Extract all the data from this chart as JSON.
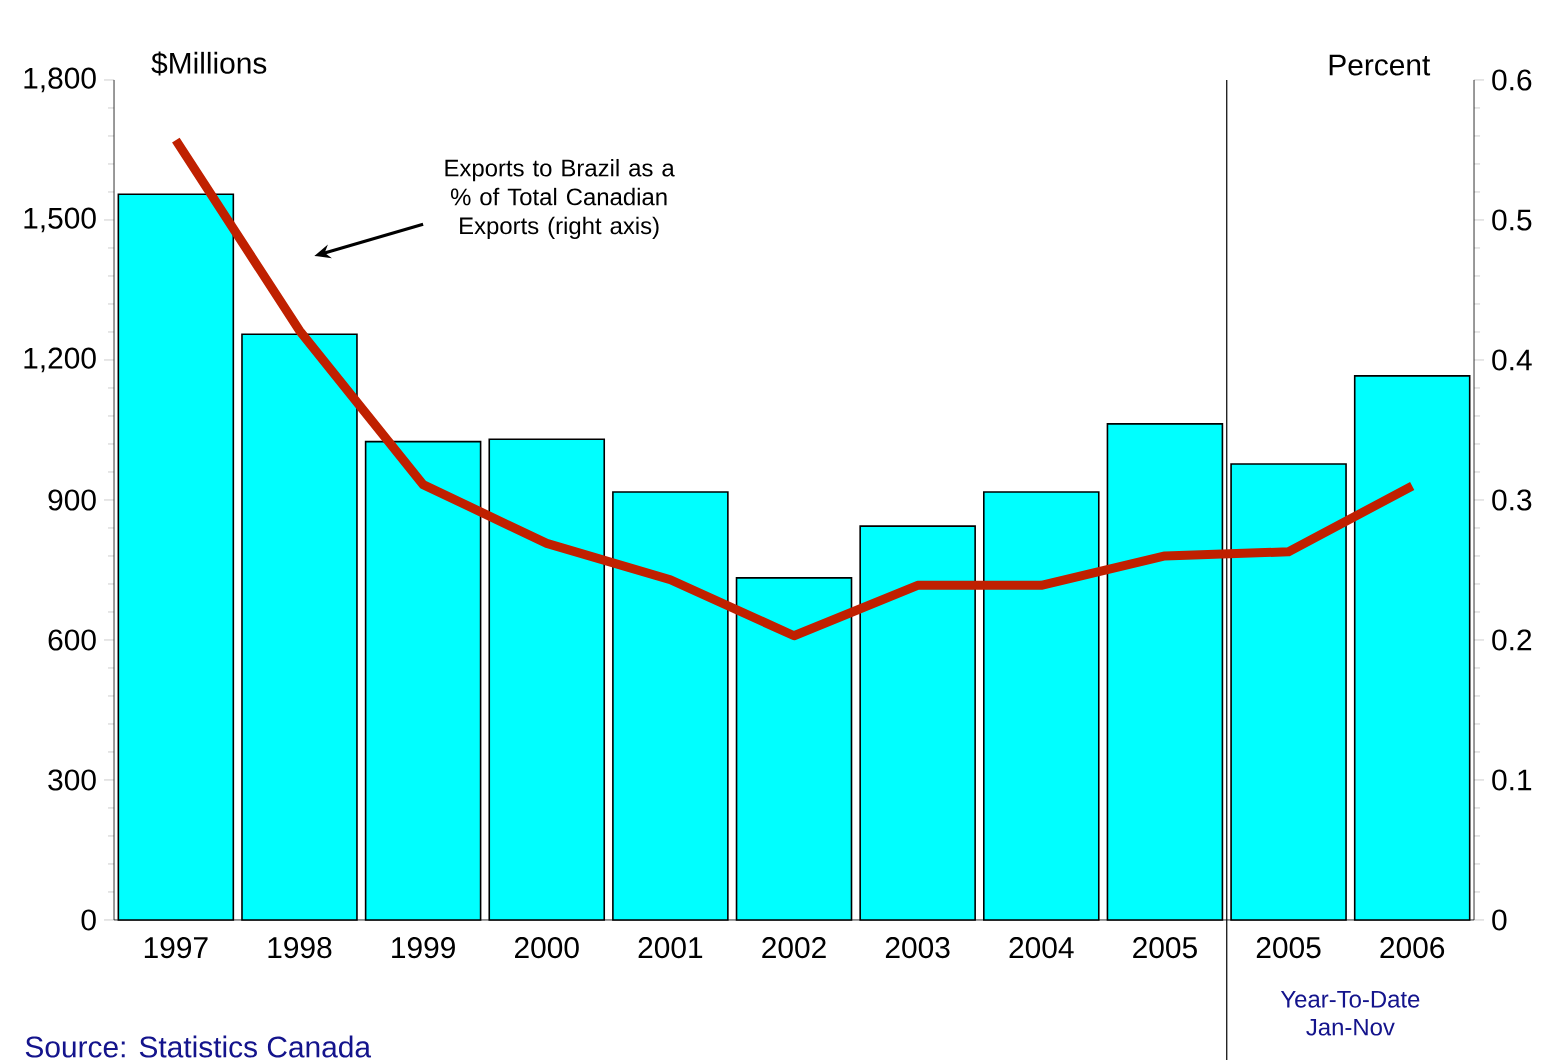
{
  "chart_data": {
    "type": "bar",
    "categories": [
      "1997",
      "1998",
      "1999",
      "2000",
      "2001",
      "2002",
      "2003",
      "2004",
      "2005",
      "2005",
      "2006"
    ],
    "ylabel": "$Millions",
    "y2label": "Percent",
    "series": [
      {
        "color": "#00ffff",
        "values": [
          1555,
          1255,
          1025,
          1030,
          917,
          733,
          844,
          917,
          1063,
          977,
          1166
        ]
      },
      {
        "type": "line",
        "axis": "y2",
        "color": "#c02000",
        "values": [
          0.557,
          0.421,
          0.311,
          0.269,
          0.243,
          0.203,
          0.239,
          0.239,
          0.26,
          0.263,
          0.31
        ]
      }
    ],
    "ylim": [
      0,
      1800
    ],
    "yticks": [
      0,
      300,
      600,
      900,
      {
        "value": 1200,
        "label": "1,200"
      },
      {
        "value": 1500,
        "label": "1,500"
      },
      {
        "value": 1800,
        "label": "1,800"
      }
    ],
    "y2lim": [
      0,
      0.6
    ],
    "y2ticks": [
      0,
      0.1,
      0.2,
      0.3,
      0.4,
      0.5,
      0.6
    ],
    "annotations": [
      "Exports to Brazil as a % of Total Canadian Exports (right axis)",
      "Year-To-Date Jan-Nov",
      "Source: Statistics Canada"
    ],
    "marker": "none",
    "grid": false
  }
}
